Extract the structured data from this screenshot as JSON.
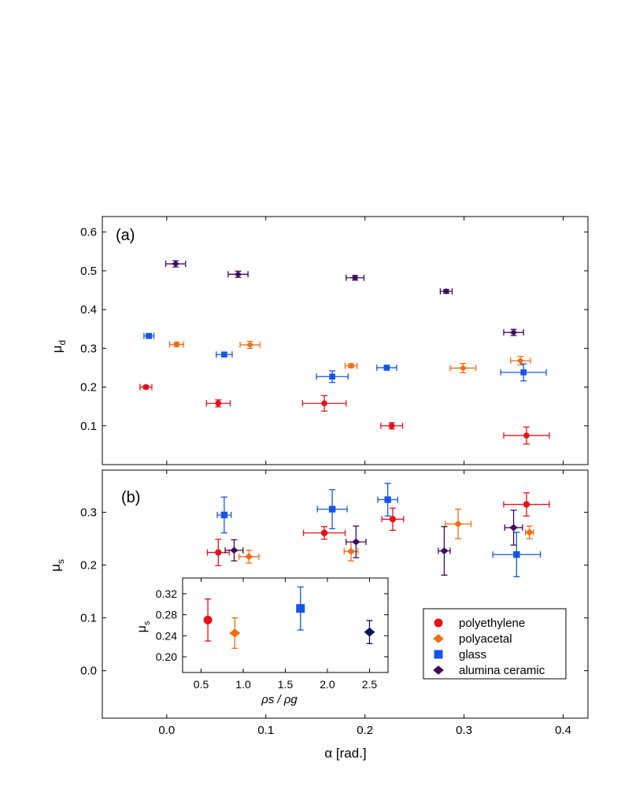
{
  "chart_data": [
    {
      "panel": "a",
      "panel_label": "(a)",
      "type": "scatter",
      "xlabel": "α [rad.]",
      "ylabel": "μ_d",
      "ylabel_main": "μ",
      "ylabel_sub": "d",
      "xlim": [
        -0.065,
        0.425
      ],
      "ylim": [
        0.0,
        0.64
      ],
      "xticks": [
        0.0,
        0.1,
        0.2,
        0.3,
        0.4
      ],
      "yticks": [
        0.1,
        0.2,
        0.3,
        0.4,
        0.5,
        0.6
      ],
      "ytick_labels": [
        "0.1",
        "0.2",
        "0.3",
        "0.4",
        "0.5",
        "0.6"
      ],
      "series": [
        {
          "name": "polyethylene",
          "color": "#e8101a",
          "marker": "circle",
          "points": [
            {
              "x": -0.021,
              "y": 0.2,
              "xerr": 0.006,
              "yerr": 0.004
            },
            {
              "x": 0.052,
              "y": 0.158,
              "xerr": 0.012,
              "yerr": 0.009
            },
            {
              "x": 0.159,
              "y": 0.158,
              "xerr": 0.022,
              "yerr": 0.02
            },
            {
              "x": 0.227,
              "y": 0.1,
              "xerr": 0.011,
              "yerr": 0.008
            },
            {
              "x": 0.363,
              "y": 0.075,
              "xerr": 0.023,
              "yerr": 0.022
            }
          ]
        },
        {
          "name": "polyacetal",
          "color": "#f26d10",
          "marker": "diamond",
          "points": [
            {
              "x": 0.01,
              "y": 0.31,
              "xerr": 0.007,
              "yerr": 0.006
            },
            {
              "x": 0.084,
              "y": 0.309,
              "xerr": 0.01,
              "yerr": 0.009
            },
            {
              "x": 0.186,
              "y": 0.255,
              "xerr": 0.006,
              "yerr": 0.005
            },
            {
              "x": 0.299,
              "y": 0.249,
              "xerr": 0.013,
              "yerr": 0.012
            },
            {
              "x": 0.357,
              "y": 0.268,
              "xerr": 0.01,
              "yerr": 0.011
            }
          ]
        },
        {
          "name": "glass",
          "color": "#1655e8",
          "marker": "square",
          "points": [
            {
              "x": -0.018,
              "y": 0.332,
              "xerr": 0.005,
              "yerr": 0.004
            },
            {
              "x": 0.058,
              "y": 0.284,
              "xerr": 0.008,
              "yerr": 0.006
            },
            {
              "x": 0.167,
              "y": 0.227,
              "xerr": 0.016,
              "yerr": 0.015
            },
            {
              "x": 0.222,
              "y": 0.25,
              "xerr": 0.01,
              "yerr": 0.006
            },
            {
              "x": 0.36,
              "y": 0.238,
              "xerr": 0.023,
              "yerr": 0.022
            }
          ]
        },
        {
          "name": "alumina ceramic",
          "color": "#3d0a5e",
          "marker": "diamond",
          "points": [
            {
              "x": 0.009,
              "y": 0.518,
              "xerr": 0.01,
              "yerr": 0.008
            },
            {
              "x": 0.072,
              "y": 0.491,
              "xerr": 0.01,
              "yerr": 0.008
            },
            {
              "x": 0.19,
              "y": 0.482,
              "xerr": 0.009,
              "yerr": 0.006
            },
            {
              "x": 0.282,
              "y": 0.447,
              "xerr": 0.006,
              "yerr": 0.005
            },
            {
              "x": 0.35,
              "y": 0.341,
              "xerr": 0.01,
              "yerr": 0.008
            }
          ]
        }
      ]
    },
    {
      "panel": "b",
      "panel_label": "(b)",
      "type": "scatter",
      "xlabel": "α [rad.]",
      "ylabel": "μ_s",
      "ylabel_main": "μ",
      "ylabel_sub": "s",
      "xlim": [
        -0.065,
        0.425
      ],
      "ylim": [
        -0.09,
        0.38
      ],
      "xticks": [
        0.0,
        0.1,
        0.2,
        0.3,
        0.4
      ],
      "xtick_labels": [
        "0.0",
        "0.1",
        "0.2",
        "0.3",
        "0.4"
      ],
      "yticks": [
        0.0,
        0.1,
        0.2,
        0.3
      ],
      "ytick_labels": [
        "0.0",
        "0.1",
        "0.2",
        "0.3"
      ],
      "series": [
        {
          "name": "polyethylene",
          "color": "#e8101a",
          "marker": "circle",
          "points": [
            {
              "x": 0.052,
              "y": 0.224,
              "xerr": 0.011,
              "yerr": 0.025
            },
            {
              "x": 0.159,
              "y": 0.261,
              "xerr": 0.021,
              "yerr": 0.012
            },
            {
              "x": 0.228,
              "y": 0.287,
              "xerr": 0.011,
              "yerr": 0.021
            },
            {
              "x": 0.363,
              "y": 0.315,
              "xerr": 0.023,
              "yerr": 0.022
            }
          ]
        },
        {
          "name": "polyacetal",
          "color": "#f26d10",
          "marker": "diamond",
          "points": [
            {
              "x": 0.083,
              "y": 0.216,
              "xerr": 0.01,
              "yerr": 0.012
            },
            {
              "x": 0.186,
              "y": 0.226,
              "xerr": 0.007,
              "yerr": 0.018
            },
            {
              "x": 0.294,
              "y": 0.278,
              "xerr": 0.013,
              "yerr": 0.028
            },
            {
              "x": 0.366,
              "y": 0.262,
              "xerr": 0.004,
              "yerr": 0.012
            }
          ]
        },
        {
          "name": "glass",
          "color": "#1655e8",
          "marker": "square",
          "points": [
            {
              "x": 0.058,
              "y": 0.295,
              "xerr": 0.007,
              "yerr": 0.034
            },
            {
              "x": 0.167,
              "y": 0.306,
              "xerr": 0.015,
              "yerr": 0.037
            },
            {
              "x": 0.223,
              "y": 0.324,
              "xerr": 0.01,
              "yerr": 0.031
            },
            {
              "x": 0.353,
              "y": 0.22,
              "xerr": 0.024,
              "yerr": 0.042
            }
          ]
        },
        {
          "name": "alumina ceramic",
          "color": "#3d0a5e",
          "marker": "diamond",
          "points": [
            {
              "x": 0.068,
              "y": 0.228,
              "xerr": 0.009,
              "yerr": 0.02
            },
            {
              "x": 0.191,
              "y": 0.244,
              "xerr": 0.01,
              "yerr": 0.03
            },
            {
              "x": 0.28,
              "y": 0.227,
              "xerr": 0.006,
              "yerr": 0.046
            },
            {
              "x": 0.35,
              "y": 0.271,
              "xerr": 0.009,
              "yerr": 0.033
            }
          ]
        }
      ],
      "legend": {
        "placement": "lower-right",
        "entries": [
          "polyethylene",
          "polyacetal",
          "glass",
          "alumina ceramic"
        ]
      }
    },
    {
      "panel": "inset",
      "type": "scatter",
      "xlabel": "ρs / ρg",
      "ylabel": "μ_s",
      "ylabel_main": "μ",
      "ylabel_sub": "s",
      "xlim": [
        0.28,
        2.72
      ],
      "ylim": [
        0.17,
        0.35
      ],
      "xticks": [
        0.5,
        1.0,
        1.5,
        2.0,
        2.5
      ],
      "xtick_labels": [
        "0.5",
        "1.0",
        "1.5",
        "2.0",
        "2.5"
      ],
      "yticks": [
        0.2,
        0.24,
        0.28,
        0.32
      ],
      "ytick_labels": [
        "0.20",
        "0.24",
        "0.28",
        "0.32"
      ],
      "series": [
        {
          "name": "polyethylene",
          "color": "#e8101a",
          "marker": "circle",
          "points": [
            {
              "x": 0.58,
              "y": 0.27,
              "yerr": 0.04
            }
          ]
        },
        {
          "name": "polyacetal",
          "color": "#f26d10",
          "marker": "diamond",
          "points": [
            {
              "x": 0.9,
              "y": 0.245,
              "yerr": 0.029
            }
          ]
        },
        {
          "name": "glass",
          "color": "#1655e8",
          "marker": "square",
          "points": [
            {
              "x": 1.68,
              "y": 0.292,
              "yerr": 0.041
            }
          ]
        },
        {
          "name": "alumina ceramic",
          "color": "#0d1652",
          "marker": "diamond",
          "points": [
            {
              "x": 2.5,
              "y": 0.247,
              "yerr": 0.022
            }
          ]
        }
      ]
    }
  ]
}
